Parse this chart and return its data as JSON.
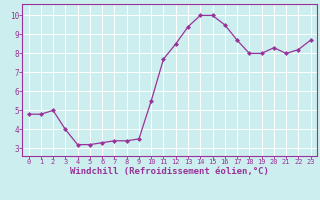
{
  "x": [
    0,
    1,
    2,
    3,
    4,
    5,
    6,
    7,
    8,
    9,
    10,
    11,
    12,
    13,
    14,
    15,
    16,
    17,
    18,
    19,
    20,
    21,
    22,
    23
  ],
  "y": [
    4.8,
    4.8,
    5.0,
    4.0,
    3.2,
    3.2,
    3.3,
    3.4,
    3.4,
    3.5,
    5.5,
    7.7,
    8.5,
    9.4,
    10.0,
    10.0,
    9.5,
    8.7,
    8.0,
    8.0,
    8.3,
    8.0,
    8.2,
    8.7
  ],
  "line_color": "#993399",
  "marker": "D",
  "marker_size": 2.0,
  "line_width": 0.9,
  "xlabel": "Windchill (Refroidissement éolien,°C)",
  "xlabel_fontsize": 6.5,
  "xtick_labels": [
    "0",
    "1",
    "2",
    "3",
    "4",
    "5",
    "6",
    "7",
    "8",
    "9",
    "10",
    "11",
    "12",
    "13",
    "14",
    "15",
    "16",
    "17",
    "18",
    "19",
    "20",
    "21",
    "22",
    "23"
  ],
  "ytick_labels": [
    "3",
    "4",
    "5",
    "6",
    "7",
    "8",
    "9",
    "10"
  ],
  "ytick_values": [
    3,
    4,
    5,
    6,
    7,
    8,
    9,
    10
  ],
  "ylim": [
    2.6,
    10.6
  ],
  "xlim": [
    -0.5,
    23.5
  ],
  "bg_color": "#cceeee",
  "grid_color": "#aadddd",
  "spine_color": "#993399",
  "tick_color": "#993399",
  "label_color": "#993399",
  "xtick_fontsize": 5.0,
  "ytick_fontsize": 5.5
}
